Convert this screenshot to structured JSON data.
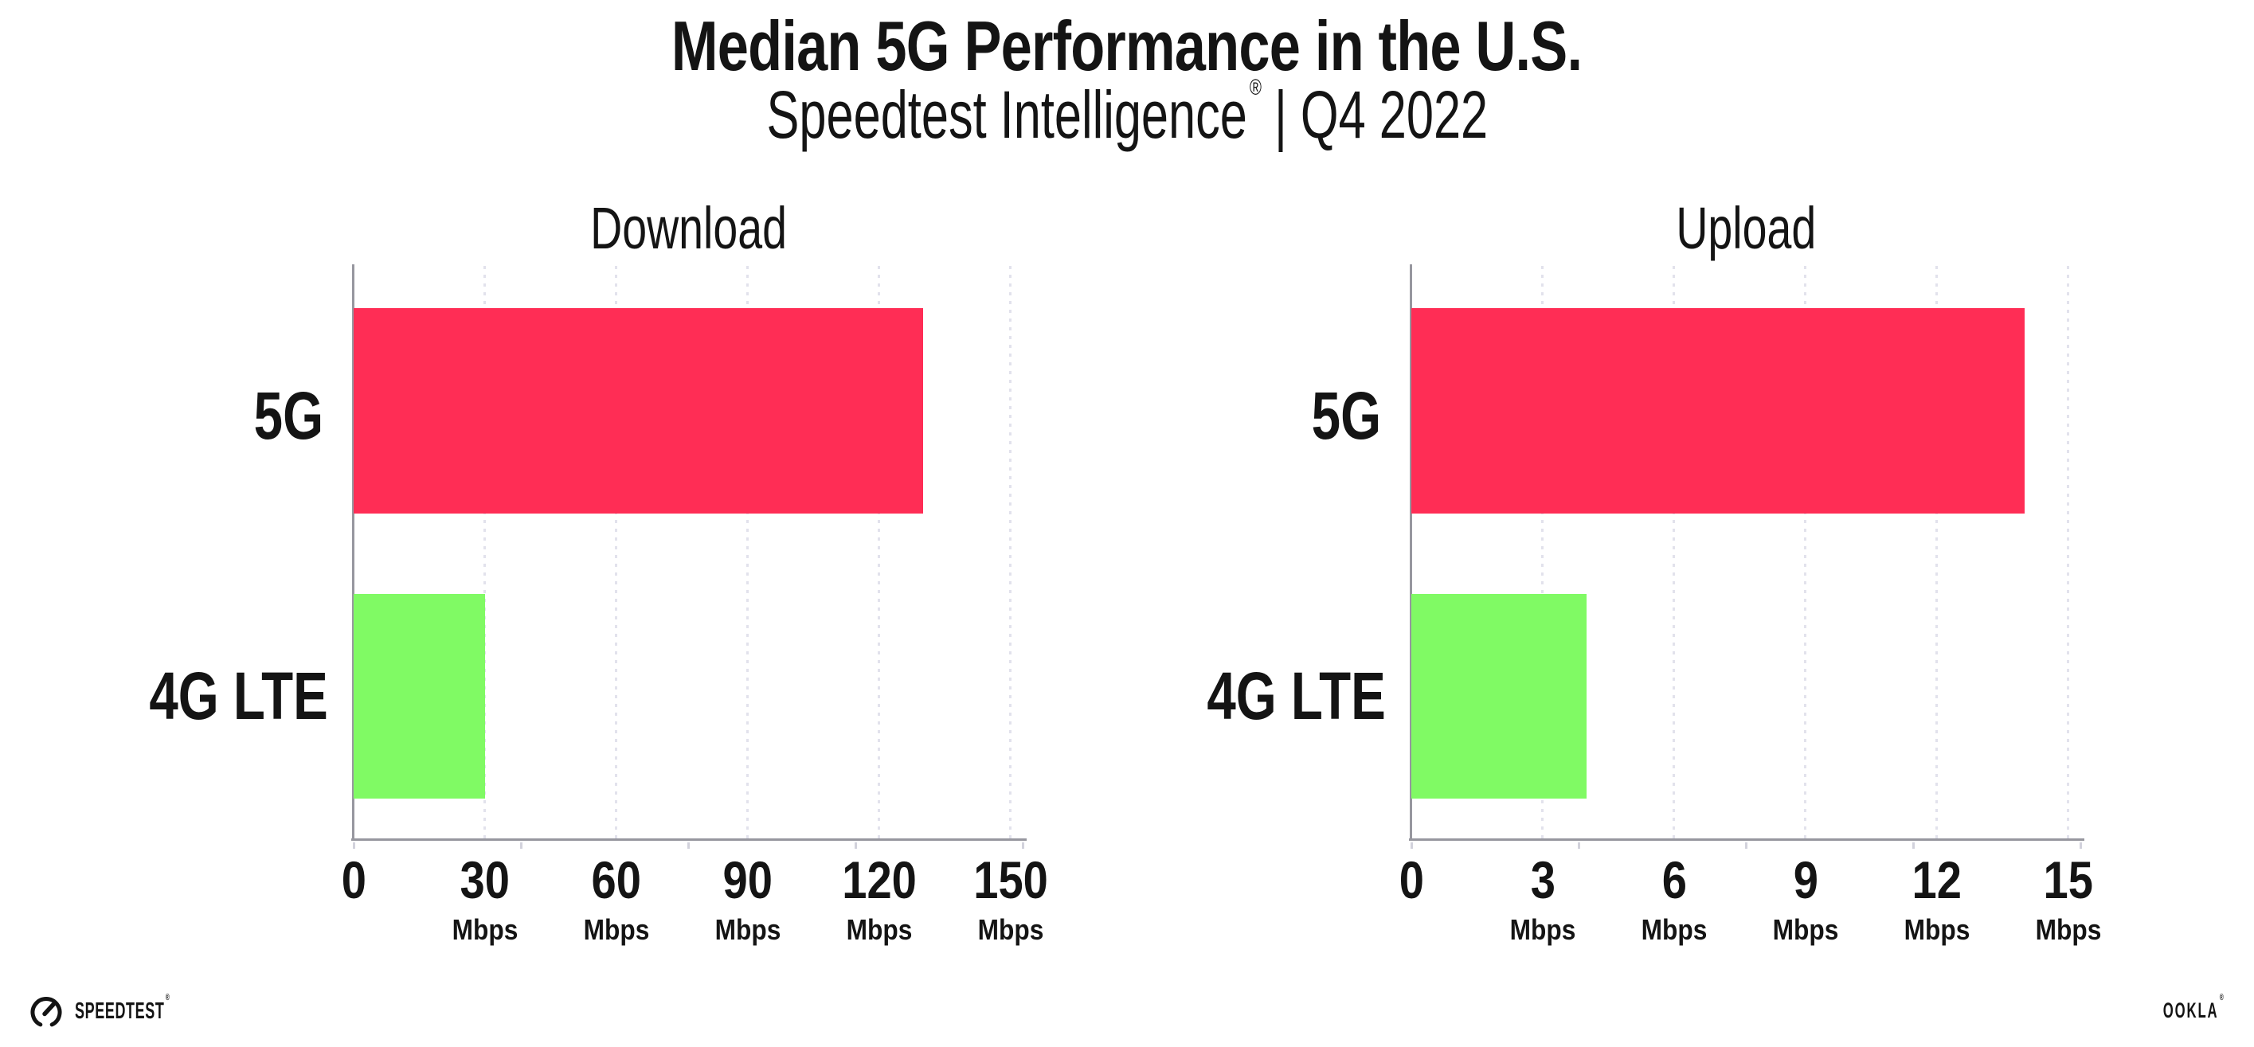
{
  "header": {
    "title": "Median 5G Performance in the U.S.",
    "subtitle_brand": "Speedtest Intelligence",
    "subtitle_registered": "®",
    "subtitle_period": "| Q4 2022"
  },
  "footer": {
    "speedtest_label": "SPEEDTEST",
    "speedtest_registered": "®",
    "speedtest_icon": "gauge-icon",
    "ookla_label": "OOKLA",
    "ookla_registered": "®"
  },
  "colors": {
    "bar_5g": "#ff2d55",
    "bar_4g_lte": "#80fa64",
    "gridline": "#e2e2ec",
    "axis_line": "#97979f",
    "minor_tick": "#d2d2dc",
    "text": "#141414"
  },
  "chart_data": [
    {
      "type": "bar",
      "orientation": "horizontal",
      "title": "Download",
      "categories": [
        "5G",
        "4G LTE"
      ],
      "values": [
        130,
        30
      ],
      "unit": "Mbps",
      "series_colors": [
        "#ff2d55",
        "#80fa64"
      ],
      "xlim": [
        0,
        150
      ],
      "xticks": [
        0,
        30,
        60,
        90,
        120,
        150
      ],
      "xtick_unit": "Mbps",
      "grid": "vertical-dotted",
      "legend": false
    },
    {
      "type": "bar",
      "orientation": "horizontal",
      "title": "Upload",
      "categories": [
        "5G",
        "4G LTE"
      ],
      "values": [
        14,
        4
      ],
      "unit": "Mbps",
      "series_colors": [
        "#ff2d55",
        "#80fa64"
      ],
      "xlim": [
        0,
        15
      ],
      "xticks": [
        0,
        3,
        6,
        9,
        12,
        15
      ],
      "xtick_unit": "Mbps",
      "grid": "vertical-dotted",
      "legend": false
    }
  ]
}
